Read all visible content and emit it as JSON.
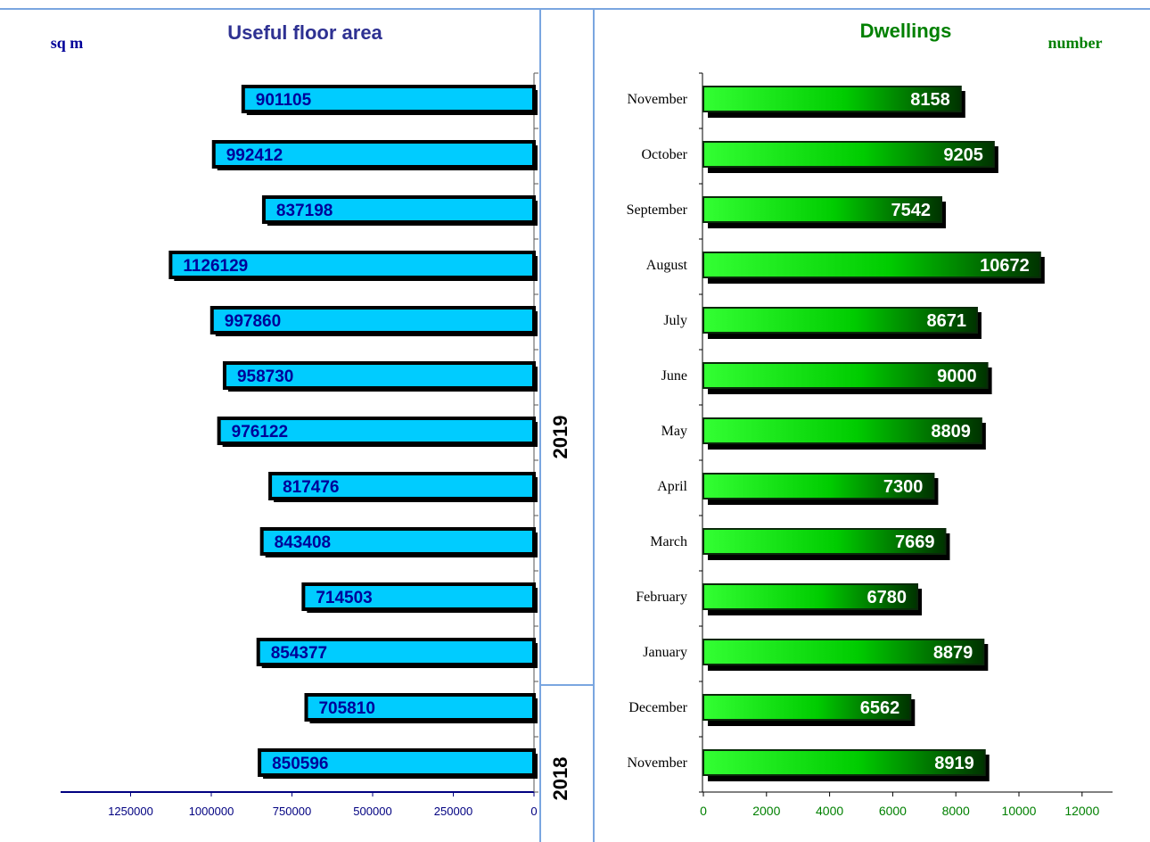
{
  "left_panel": {
    "title": "Useful floor area",
    "unit": "sq m",
    "title_color": "#2E3192",
    "bar_color": "#00CCFF",
    "label_color": "#000099"
  },
  "right_panel": {
    "title": "Dwellings",
    "unit": "number",
    "title_color": "#008000",
    "bar_color": "#00EE00"
  },
  "year_labels": {
    "upper": "2019",
    "lower": "2018"
  },
  "chart_data": [
    {
      "type": "bar",
      "orientation": "horizontal-reversed",
      "title": "Useful floor area",
      "unit": "sq m",
      "categories": [
        "November",
        "December",
        "January",
        "February",
        "March",
        "April",
        "May",
        "June",
        "July",
        "August",
        "September",
        "October",
        "November"
      ],
      "values": [
        850596,
        705810,
        854377,
        714503,
        843408,
        817476,
        976122,
        958730,
        997860,
        1126129,
        837198,
        992412,
        901105
      ],
      "xlim": [
        0,
        1450000
      ],
      "xticks": [
        1250000,
        1000000,
        750000,
        500000,
        250000,
        0
      ]
    },
    {
      "type": "bar",
      "orientation": "horizontal",
      "title": "Dwellings",
      "unit": "number",
      "categories": [
        "November",
        "December",
        "January",
        "February",
        "March",
        "April",
        "May",
        "June",
        "July",
        "August",
        "September",
        "October",
        "November"
      ],
      "values": [
        8919,
        6562,
        8879,
        6780,
        7669,
        7300,
        8809,
        9000,
        8671,
        10672,
        7542,
        9205,
        8158
      ],
      "xlim": [
        0,
        13000
      ],
      "xticks": [
        0,
        2000,
        4000,
        6000,
        8000,
        10000,
        12000
      ]
    }
  ]
}
